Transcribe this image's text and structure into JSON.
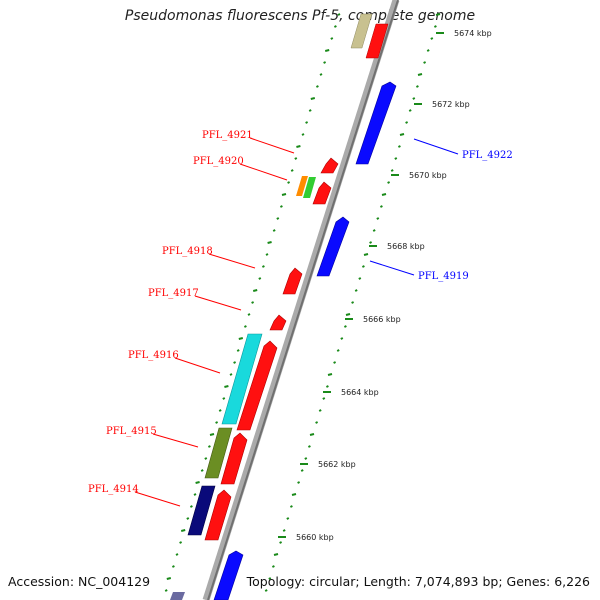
{
  "title": "Pseudomonas fluorescens Pf-5, complete genome",
  "footer": {
    "accession": "Accession: NC_004129",
    "topology": "Topology: circular; Length: 7,074,893 bp; Genes: 6,226"
  },
  "colors": {
    "forward_strand": "#ff0000",
    "reverse_strand": "#0000ff",
    "backbone": "#888888",
    "gc_dots": "#1a8a1a"
  },
  "scale": {
    "unit": "kbp",
    "ticks": [
      {
        "kbp": 5674,
        "label": "5674 kbp"
      },
      {
        "kbp": 5672,
        "label": "5672 kbp"
      },
      {
        "kbp": 5670,
        "label": "5670 kbp"
      },
      {
        "kbp": 5668,
        "label": "5668 kbp"
      },
      {
        "kbp": 5666,
        "label": "5666 kbp"
      },
      {
        "kbp": 5664,
        "label": "5664 kbp"
      },
      {
        "kbp": 5662,
        "label": "5662 kbp"
      },
      {
        "kbp": 5660,
        "label": "5660 kbp"
      }
    ]
  },
  "labels": [
    {
      "name": "PFL_4922",
      "side": "right",
      "color": "#0000ff"
    },
    {
      "name": "PFL_4921",
      "side": "left",
      "color": "#ff0000"
    },
    {
      "name": "PFL_4920",
      "side": "left",
      "color": "#ff0000"
    },
    {
      "name": "PFL_4919",
      "side": "right",
      "color": "#0000ff"
    },
    {
      "name": "PFL_4918",
      "side": "left",
      "color": "#ff0000"
    },
    {
      "name": "PFL_4917",
      "side": "left",
      "color": "#ff0000"
    },
    {
      "name": "PFL_4916",
      "side": "left",
      "color": "#ff0000"
    },
    {
      "name": "PFL_4915",
      "side": "left",
      "color": "#ff0000"
    },
    {
      "name": "PFL_4914",
      "side": "left",
      "color": "#ff0000"
    }
  ]
}
